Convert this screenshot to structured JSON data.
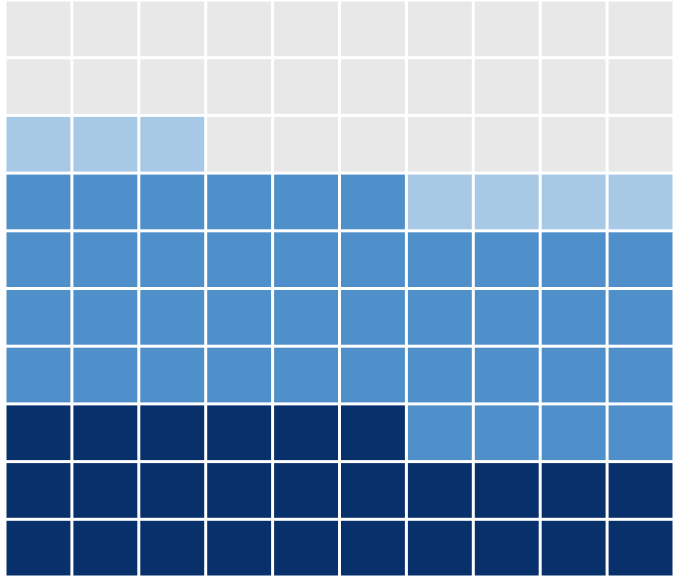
{
  "chart_data": {
    "type": "waffle",
    "rows": 10,
    "columns": 10,
    "values": [
      26,
      40,
      7,
      27
    ],
    "colors": [
      "#08306b",
      "#4f8fca",
      "#a7c9e6",
      "#e8e8e8"
    ]
  }
}
